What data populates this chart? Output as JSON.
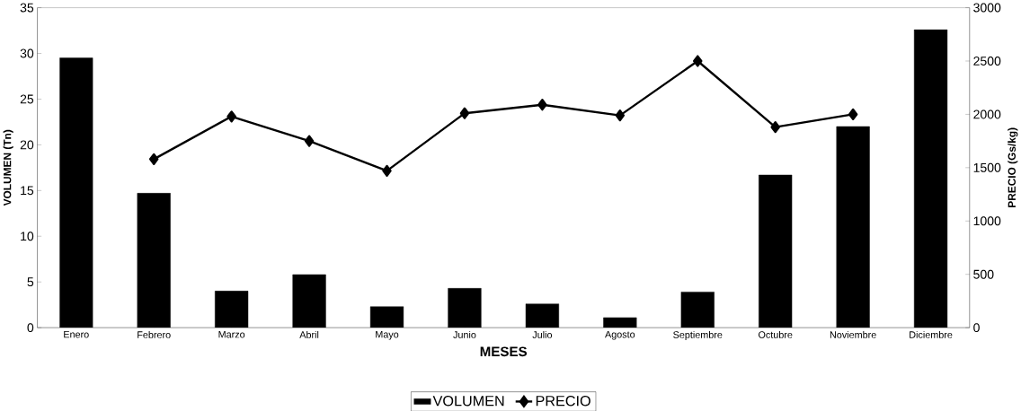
{
  "chart_data": {
    "type": "bar",
    "xlabel": "MESES",
    "ylabel": "VOLUMEN (Tn)",
    "y2label": "PRECIO (Gs/kg)",
    "categories": [
      "Enero",
      "Febrero",
      "Marzo",
      "Abril",
      "Mayo",
      "Junio",
      "Julio",
      "Agosto",
      "Septiembre",
      "Octubre",
      "Noviembre",
      "Diciembre"
    ],
    "series": [
      {
        "name": "VOLUMEN",
        "color": "#000000",
        "values": [
          29.5,
          14.7,
          4,
          5.8,
          2.3,
          4.3,
          2.6,
          1.1,
          3.9,
          16.7,
          22,
          32.6
        ]
      },
      {
        "name": "PRECIO",
        "type": "line",
        "axis": "y2",
        "color": "#000000",
        "marker": "diamond",
        "values": [
          null,
          1580,
          1980,
          1750,
          1470,
          2010,
          2090,
          1990,
          2500,
          1880,
          2000,
          null
        ]
      }
    ],
    "ylim": [
      0,
      35
    ],
    "yticks": [
      0,
      5,
      10,
      15,
      20,
      25,
      30,
      35
    ],
    "y2lim": [
      0,
      3000
    ],
    "y2ticks": [
      0,
      500,
      1000,
      1500,
      2000,
      2500,
      3000
    ],
    "grid": false,
    "legend": "bottom"
  }
}
